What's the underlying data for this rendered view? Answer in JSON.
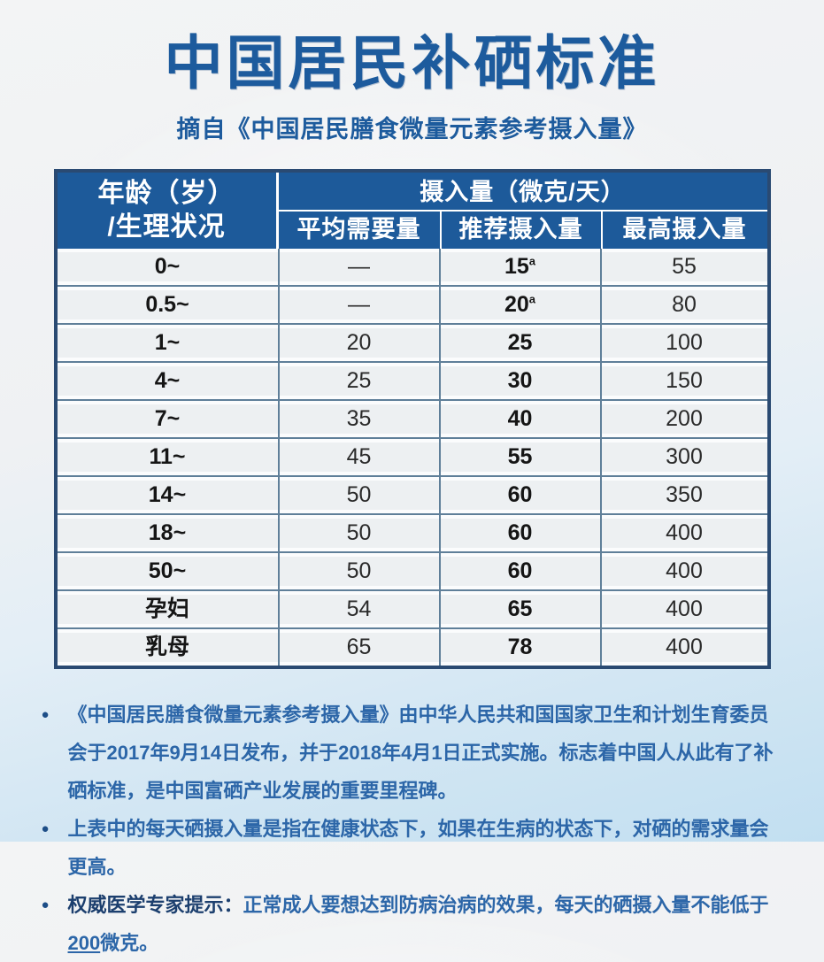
{
  "page": {
    "title": "中国居民补硒标准",
    "subtitle": "摘自《中国居民膳食微量元素参考摄入量》"
  },
  "table": {
    "header": {
      "age_line1": "年龄（岁）",
      "age_line2": "/生理状况",
      "intake_label": "摄入量（微克/天）",
      "col_ear": "平均需要量",
      "col_rai": "推荐摄入量",
      "col_ul": "最高摄入量"
    },
    "rows": [
      {
        "age": "0~",
        "ear": "—",
        "rai": "15",
        "rai_sup": "a",
        "ul": "55"
      },
      {
        "age": "0.5~",
        "ear": "—",
        "rai": "20",
        "rai_sup": "a",
        "ul": "80"
      },
      {
        "age": "1~",
        "ear": "20",
        "rai": "25",
        "rai_sup": "",
        "ul": "100"
      },
      {
        "age": "4~",
        "ear": "25",
        "rai": "30",
        "rai_sup": "",
        "ul": "150"
      },
      {
        "age": "7~",
        "ear": "35",
        "rai": "40",
        "rai_sup": "",
        "ul": "200"
      },
      {
        "age": "11~",
        "ear": "45",
        "rai": "55",
        "rai_sup": "",
        "ul": "300"
      },
      {
        "age": "14~",
        "ear": "50",
        "rai": "60",
        "rai_sup": "",
        "ul": "350"
      },
      {
        "age": "18~",
        "ear": "50",
        "rai": "60",
        "rai_sup": "",
        "ul": "400"
      },
      {
        "age": "50~",
        "ear": "50",
        "rai": "60",
        "rai_sup": "",
        "ul": "400"
      },
      {
        "age": "孕妇",
        "ear": "54",
        "rai": "65",
        "rai_sup": "",
        "ul": "400"
      },
      {
        "age": "乳母",
        "ear": "65",
        "rai": "78",
        "rai_sup": "",
        "ul": "400"
      }
    ]
  },
  "notes": {
    "bullet_glyph": "●",
    "note1": "《中国居民膳食微量元素参考摄入量》由中华人民共和国国家卫生和计划生育委员会于2017年9月14日发布，并于2018年4月1日正式实施。标志着中国人从此有了补硒标准，是中国富硒产业发展的重要里程碑。",
    "note2": "上表中的每天硒摄入量是指在健康状态下，如果在生病的状态下，对硒的需求量会更高。",
    "note3_label": "权威医学专家提示：",
    "note3_text": "正常成人要想达到防病治病的效果，每天的硒摄入量不能低于",
    "note3_strong": "200",
    "note3_tail": "微克。"
  },
  "colors": {
    "accent_blue": "#1d5b9d",
    "header_bg": "#1d5a9a",
    "outer_border": "#2a4a72",
    "grid_line": "#5f7f99",
    "row_bg": "#edf0f2",
    "note_blue": "#2c66a8",
    "bg_bottom": "#c2dff1"
  }
}
